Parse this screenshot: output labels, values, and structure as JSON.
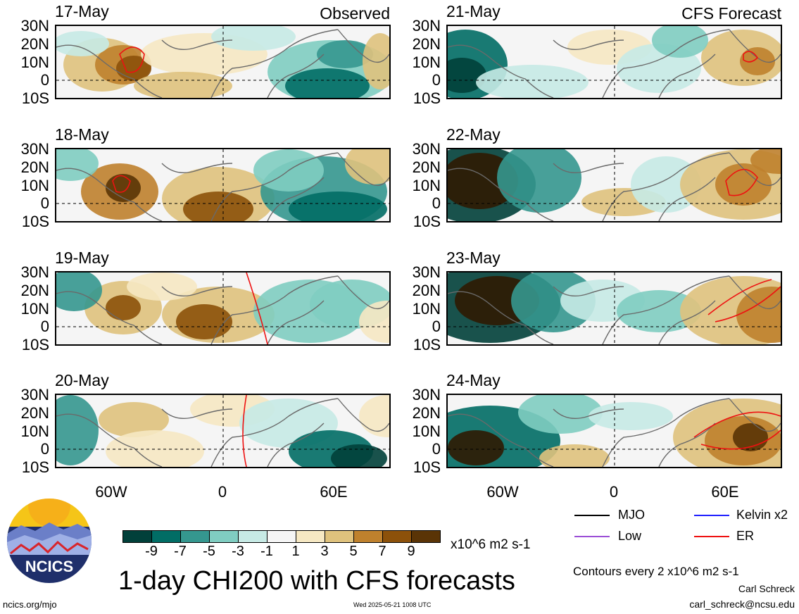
{
  "column_titles": {
    "left": "Observed",
    "right": "CFS Forecast"
  },
  "panels_left": [
    {
      "date": "17-May"
    },
    {
      "date": "18-May"
    },
    {
      "date": "19-May"
    },
    {
      "date": "20-May"
    }
  ],
  "panels_right": [
    {
      "date": "21-May"
    },
    {
      "date": "22-May"
    },
    {
      "date": "23-May"
    },
    {
      "date": "24-May"
    }
  ],
  "lat_labels": [
    "30N",
    "20N",
    "10N",
    "0",
    "10S"
  ],
  "lon_labels": [
    "60W",
    "0",
    "60E"
  ],
  "colorbar": {
    "colors": [
      "#01403a",
      "#016d65",
      "#35978f",
      "#80cdc1",
      "#c7eae5",
      "#f5f5f5",
      "#f6e8c3",
      "#dfc27d",
      "#bf812d",
      "#8c510a",
      "#5a3406"
    ],
    "ticks": [
      "-9",
      "-7",
      "-5",
      "-3",
      "-1",
      "1",
      "3",
      "5",
      "7",
      "9"
    ],
    "units": "x10^6 m2 s-1"
  },
  "legend": [
    {
      "label": "MJO",
      "color": "#000000"
    },
    {
      "label": "Kelvin x2",
      "color": "#1f1fff"
    },
    {
      "label": "Low",
      "color": "#9b4fd6"
    },
    {
      "label": "ER",
      "color": "#ee1111"
    }
  ],
  "contour_note": "Contours every 2 x10^6 m2 s-1",
  "main_title": "1-day CHI200 with CFS forecasts",
  "author": "Carl Schreck",
  "email": "carl_schreck@ncsu.edu",
  "site": "ncics.org/mjo",
  "timestamp": "Wed 2025-05-21 1008 UTC",
  "logo_text": "NCICS"
}
